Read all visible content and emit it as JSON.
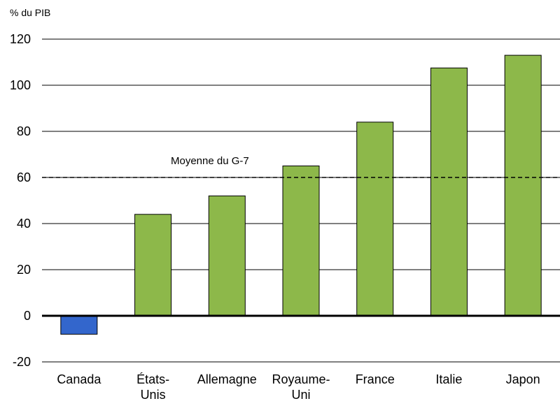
{
  "chart_data": {
    "type": "bar",
    "unit_label": "% du PIB",
    "categories": [
      [
        "Canada"
      ],
      [
        "États-",
        "Unis"
      ],
      [
        "Allemagne"
      ],
      [
        "Royaume-",
        "Uni"
      ],
      [
        "France"
      ],
      [
        "Italie"
      ],
      [
        "Japon"
      ]
    ],
    "values": [
      -8,
      44,
      52,
      65,
      84,
      107.5,
      113
    ],
    "bar_colors": [
      "#3366cc",
      "#8db84a",
      "#8db84a",
      "#8db84a",
      "#8db84a",
      "#8db84a",
      "#8db84a"
    ],
    "ylim": [
      -20,
      120
    ],
    "yticks": [
      -20,
      0,
      20,
      40,
      60,
      80,
      100,
      120
    ],
    "grid": true,
    "reference_line": {
      "value": 60,
      "label": "Moyenne du G-7",
      "style": "dashed"
    },
    "title": "",
    "xlabel": "",
    "ylabel": ""
  }
}
